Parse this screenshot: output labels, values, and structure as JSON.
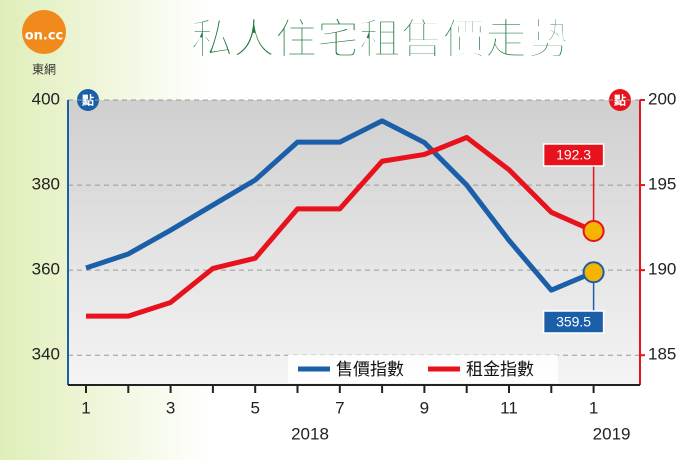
{
  "chart_data": {
    "type": "line",
    "title": "私人住宅租售價走勢",
    "logo_text": "on.cc",
    "logo_caption": "東網",
    "ylabel": "點",
    "y2label": "點",
    "categories": [
      "1",
      null,
      "3",
      null,
      "5",
      null,
      "7",
      null,
      "9",
      null,
      "11",
      null,
      "1"
    ],
    "year_labels": [
      "2018",
      "2019"
    ],
    "series": [
      {
        "name": "售價指數",
        "color": "#1a5fa8",
        "values": [
          360.5,
          363.8,
          369.4,
          375.3,
          381.2,
          390.1,
          390.1,
          395.1,
          390,
          380,
          367,
          355.3,
          359.5
        ]
      },
      {
        "name": "租金指數",
        "color": "#e8121c",
        "axis": "y2",
        "values": [
          187.3,
          187.3,
          188.1,
          190.1,
          190.7,
          193.6,
          193.6,
          196.4,
          196.8,
          197.8,
          195.9,
          193.4,
          192.3
        ]
      }
    ],
    "ylim": [
      333,
      400
    ],
    "yticks": [
      340,
      360,
      380,
      400
    ],
    "y2lim": [
      183.25,
      200
    ],
    "y2ticks": [
      185,
      190,
      195,
      200
    ],
    "grid": true
  }
}
